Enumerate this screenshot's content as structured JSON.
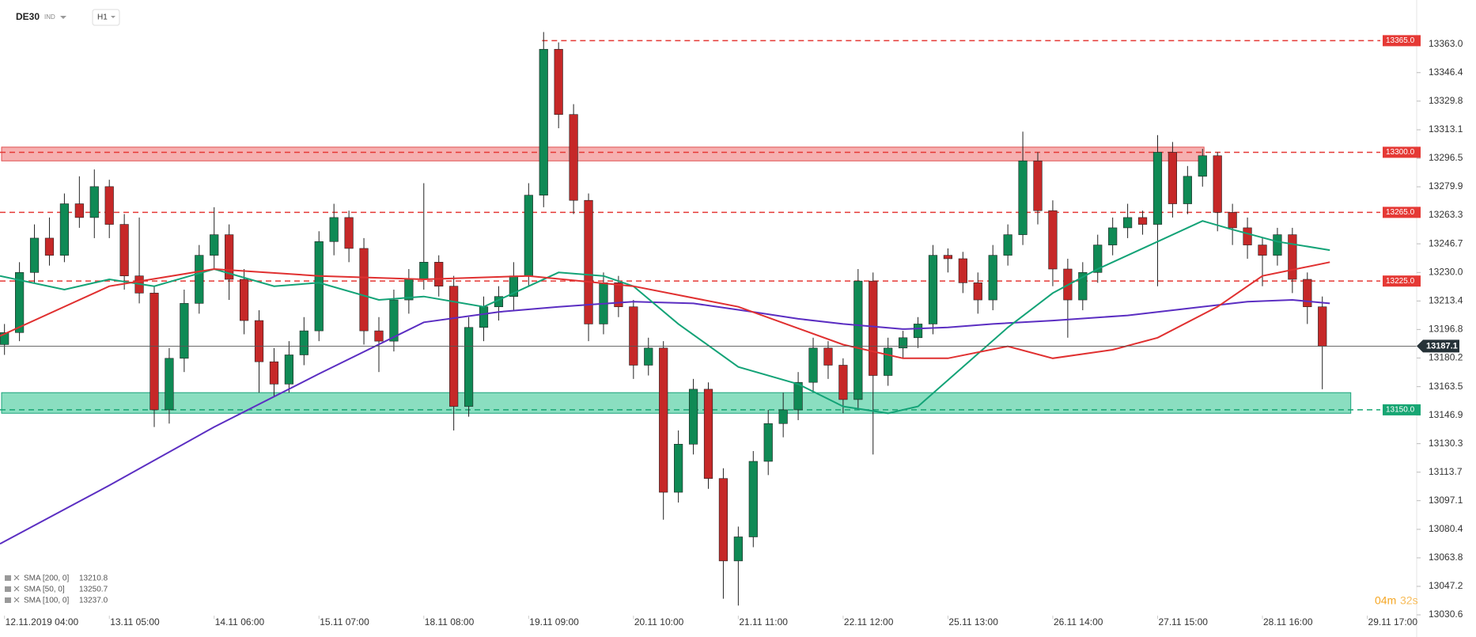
{
  "header": {
    "symbol": "DE30",
    "market": "IND",
    "interval": "H1"
  },
  "timer": [
    "04m",
    "32s"
  ],
  "chart_data": {
    "type": "candlestick",
    "up_color": "#0f8a55",
    "down_color": "#c62828",
    "xlim": [
      -0.3,
      94.3
    ],
    "xticks": [
      {
        "value": 0,
        "label": "12.11.2019  04:00"
      },
      {
        "value": 7,
        "label": "13.11  05:00"
      },
      {
        "value": 14,
        "label": "14.11  06:00"
      },
      {
        "value": 21,
        "label": "15.11  07:00"
      },
      {
        "value": 28,
        "label": "18.11  08:00"
      },
      {
        "value": 35,
        "label": "19.11  09:00"
      },
      {
        "value": 42,
        "label": "20.11  10:00"
      },
      {
        "value": 49,
        "label": "21.11  11:00"
      },
      {
        "value": 56,
        "label": "22.11  12:00"
      },
      {
        "value": 63,
        "label": "25.11  13:00"
      },
      {
        "value": 70,
        "label": "26.11  14:00"
      },
      {
        "value": 77,
        "label": "27.11  15:00"
      },
      {
        "value": 84,
        "label": "28.11  16:00"
      },
      {
        "value": 91,
        "label": "29.11  17:00"
      }
    ],
    "ylim": [
      13020,
      13385
    ],
    "yticks": [
      {
        "value": 13363,
        "label": "13363.0"
      },
      13346.4,
      13329.8,
      13313.1,
      13296.5,
      13279.9,
      13263.3,
      13246.7,
      {
        "value": 13230,
        "label": "13230.0"
      },
      13213.4,
      13196.8,
      13180.2,
      13163.5,
      13146.9,
      13130.3,
      13113.7,
      13097.1,
      13080.4,
      13063.8,
      13047.2,
      13030.6
    ],
    "candles": [
      [
        13188,
        13200,
        13182,
        13195
      ],
      [
        13195,
        13236,
        13190,
        13230
      ],
      [
        13230,
        13258,
        13224,
        13250
      ],
      [
        13250,
        13262,
        13234,
        13240
      ],
      [
        13240,
        13276,
        13236,
        13270
      ],
      [
        13270,
        13286,
        13256,
        13262
      ],
      [
        13262,
        13290,
        13250,
        13280
      ],
      [
        13280,
        13284,
        13250,
        13258
      ],
      [
        13258,
        13264,
        13220,
        13228
      ],
      [
        13228,
        13262,
        13212,
        13218
      ],
      [
        13218,
        13222,
        13140,
        13150
      ],
      [
        13150,
        13186,
        13142,
        13180
      ],
      [
        13180,
        13220,
        13172,
        13212
      ],
      [
        13212,
        13246,
        13206,
        13240
      ],
      [
        13240,
        13268,
        13232,
        13252
      ],
      [
        13252,
        13258,
        13214,
        13226
      ],
      [
        13226,
        13232,
        13194,
        13202
      ],
      [
        13202,
        13208,
        13160,
        13178
      ],
      [
        13178,
        13186,
        13158,
        13165
      ],
      [
        13165,
        13190,
        13160,
        13182
      ],
      [
        13182,
        13204,
        13176,
        13196
      ],
      [
        13196,
        13254,
        13190,
        13248
      ],
      [
        13248,
        13270,
        13240,
        13262
      ],
      [
        13262,
        13266,
        13236,
        13244
      ],
      [
        13244,
        13250,
        13188,
        13196
      ],
      [
        13196,
        13204,
        13172,
        13190
      ],
      [
        13190,
        13220,
        13184,
        13214
      ],
      [
        13214,
        13232,
        13206,
        13226
      ],
      [
        13226,
        13282,
        13220,
        13236
      ],
      [
        13236,
        13240,
        13216,
        13222
      ],
      [
        13222,
        13228,
        13138,
        13152
      ],
      [
        13152,
        13204,
        13146,
        13198
      ],
      [
        13198,
        13216,
        13190,
        13210
      ],
      [
        13210,
        13222,
        13202,
        13216
      ],
      [
        13216,
        13236,
        13208,
        13228
      ],
      [
        13228,
        13282,
        13222,
        13275
      ],
      [
        13275,
        13370,
        13268,
        13360
      ],
      [
        13360,
        13364,
        13314,
        13322
      ],
      [
        13322,
        13328,
        13264,
        13272
      ],
      [
        13272,
        13276,
        13190,
        13200
      ],
      [
        13200,
        13230,
        13194,
        13224
      ],
      [
        13224,
        13228,
        13204,
        13210
      ],
      [
        13210,
        13214,
        13168,
        13176
      ],
      [
        13176,
        13192,
        13170,
        13186
      ],
      [
        13186,
        13190,
        13086,
        13102
      ],
      [
        13102,
        13138,
        13096,
        13130
      ],
      [
        13130,
        13168,
        13124,
        13162
      ],
      [
        13162,
        13166,
        13104,
        13110
      ],
      [
        13110,
        13116,
        13040,
        13062
      ],
      [
        13062,
        13082,
        13036,
        13076
      ],
      [
        13076,
        13126,
        13070,
        13120
      ],
      [
        13120,
        13150,
        13112,
        13142
      ],
      [
        13142,
        13160,
        13134,
        13150
      ],
      [
        13150,
        13172,
        13144,
        13166
      ],
      [
        13166,
        13192,
        13160,
        13186
      ],
      [
        13186,
        13190,
        13168,
        13176
      ],
      [
        13176,
        13180,
        13148,
        13156
      ],
      [
        13156,
        13232,
        13150,
        13225
      ],
      [
        13225,
        13230,
        13124,
        13170
      ],
      [
        13170,
        13192,
        13164,
        13186
      ],
      [
        13186,
        13196,
        13180,
        13192
      ],
      [
        13192,
        13204,
        13186,
        13200
      ],
      [
        13200,
        13246,
        13194,
        13240
      ],
      [
        13240,
        13244,
        13230,
        13238
      ],
      [
        13238,
        13242,
        13218,
        13224
      ],
      [
        13224,
        13230,
        13206,
        13214
      ],
      [
        13214,
        13246,
        13208,
        13240
      ],
      [
        13240,
        13258,
        13234,
        13252
      ],
      [
        13252,
        13312,
        13246,
        13295
      ],
      [
        13295,
        13300,
        13258,
        13266
      ],
      [
        13266,
        13272,
        13222,
        13232
      ],
      [
        13232,
        13238,
        13192,
        13214
      ],
      [
        13214,
        13236,
        13208,
        13230
      ],
      [
        13230,
        13252,
        13224,
        13246
      ],
      [
        13246,
        13262,
        13240,
        13256
      ],
      [
        13256,
        13270,
        13250,
        13262
      ],
      [
        13262,
        13266,
        13252,
        13258
      ],
      [
        13258,
        13310,
        13222,
        13300
      ],
      [
        13300,
        13306,
        13262,
        13270
      ],
      [
        13270,
        13292,
        13264,
        13286
      ],
      [
        13286,
        13302,
        13280,
        13298
      ],
      [
        13298,
        13300,
        13254,
        13265
      ],
      [
        13265,
        13270,
        13246,
        13256
      ],
      [
        13256,
        13262,
        13238,
        13246
      ],
      [
        13246,
        13250,
        13222,
        13240
      ],
      [
        13240,
        13256,
        13234,
        13252
      ],
      [
        13252,
        13256,
        13218,
        13226
      ],
      [
        13226,
        13230,
        13200,
        13210
      ],
      [
        13210,
        13216,
        13162,
        13187
      ]
    ],
    "series": [
      {
        "name": "SMA [200,  0]",
        "value_label": "13210.8",
        "color": "#5b2ec2",
        "x": [
          -0.3,
          7,
          14,
          21,
          28,
          33,
          37,
          42,
          46,
          50,
          53,
          56,
          60,
          63,
          66,
          70,
          75,
          79,
          83,
          86,
          88.5
        ],
        "values": [
          13072,
          13106,
          13140,
          13171,
          13201,
          13207,
          13210,
          13213,
          13212,
          13207,
          13203,
          13200,
          13197,
          13198,
          13200,
          13202,
          13205,
          13209,
          13213,
          13214,
          13212
        ]
      },
      {
        "name": "SMA [50,  0]",
        "value_label": "13250.7",
        "color": "#13a377",
        "x": [
          -0.3,
          4,
          7,
          10,
          14,
          18,
          21,
          25,
          28,
          32,
          35,
          37,
          40,
          42,
          45,
          49,
          53,
          56,
          59,
          61,
          64,
          67,
          70,
          73,
          77,
          80,
          82,
          85,
          88.5
        ],
        "values": [
          13228,
          13220,
          13226,
          13222,
          13232,
          13222,
          13224,
          13214,
          13216,
          13210,
          13222,
          13230,
          13228,
          13222,
          13200,
          13175,
          13165,
          13152,
          13148,
          13152,
          13175,
          13198,
          13218,
          13232,
          13248,
          13260,
          13255,
          13248,
          13243
        ]
      },
      {
        "name": "SMA [100,  0]",
        "value_label": "13237.0",
        "color": "#e03030",
        "x": [
          -0.3,
          7,
          14,
          21,
          28,
          35,
          42,
          49,
          56,
          60,
          63,
          67,
          70,
          74,
          77,
          81,
          84,
          88.5
        ],
        "values": [
          13193,
          13222,
          13232,
          13228,
          13226,
          13228,
          13222,
          13210,
          13188,
          13180,
          13180,
          13187,
          13180,
          13185,
          13192,
          13210,
          13228,
          13236
        ]
      }
    ],
    "levels": [
      {
        "value": 13365,
        "label": "13365.0"
      },
      {
        "value": 13300,
        "label": "13300.0"
      },
      {
        "value": 13265,
        "label": "13265.0"
      },
      {
        "value": 13225,
        "label": "13225.0"
      }
    ],
    "support": {
      "value": 13150,
      "label": "13150.0"
    },
    "resistance_zone": [
      13295,
      13303
    ],
    "support_zone": [
      13148,
      13160
    ],
    "last_price": 13187.1
  }
}
